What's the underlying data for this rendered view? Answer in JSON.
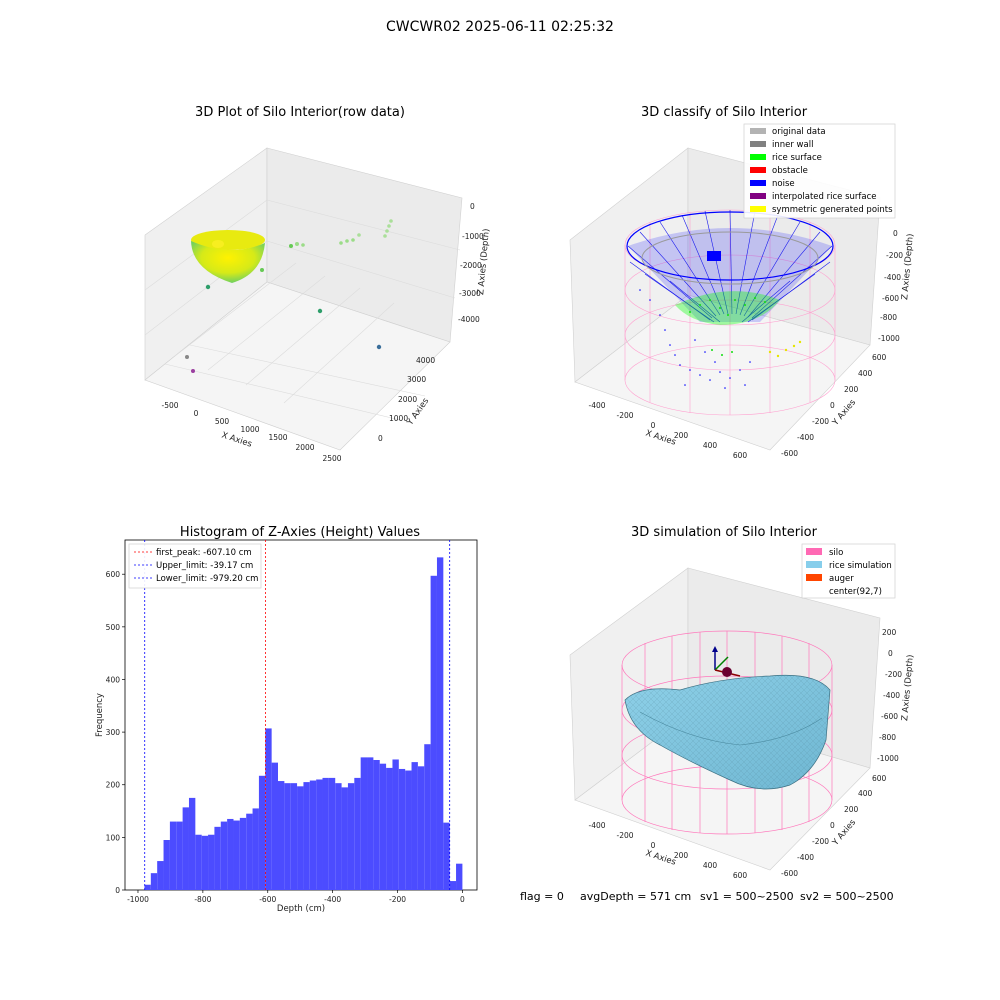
{
  "figure": {
    "suptitle": "CWCWR02 2025-06-11 02:25:32",
    "footer": {
      "flag": "flag = 0",
      "avg": "avgDepth = 571 cm",
      "sv1": "sv1 = 500~2500",
      "sv2": "sv2 = 500~2500"
    }
  },
  "colors": {
    "histogram_bar": "#4c4cff",
    "first_peak": "#ff0000",
    "limit": "#0000ff",
    "silo_wire": "#ff69b4",
    "rice_surface": "#87ceeb",
    "rice_green": "#00ff00",
    "noise": "#0000ff",
    "raw_yellow": "#e8e800",
    "raw_green": "#7fd85a"
  },
  "chart_data": [
    {
      "type": "scatter",
      "title": "3D Plot of Silo Interior(row data)",
      "xlabel": "X Axies",
      "ylabel": "Y Axies",
      "zlabel": "Z Axies (Depth)",
      "xticks": [
        "-500",
        "0",
        "500",
        "1000",
        "1500",
        "2000",
        "2500"
      ],
      "yticks": [
        "0",
        "1000",
        "2000",
        "3000",
        "4000"
      ],
      "zticks": [
        "0",
        "-1000",
        "-2000",
        "-3000",
        "-4000"
      ]
    },
    {
      "type": "scatter",
      "title": "3D classify of Silo Interior",
      "zlabel": "Z Axies (Depth)",
      "xlabel": "X Axies",
      "ylabel": "Y Axies",
      "xticks": [
        "-400",
        "-200",
        "0",
        "200",
        "400",
        "600"
      ],
      "yticks": [
        "600",
        "400",
        "200",
        "0",
        "-200",
        "-400",
        "-600"
      ],
      "zticks": [
        "0",
        "-200",
        "-400",
        "-600",
        "-800",
        "-1000"
      ],
      "legend": [
        {
          "label": "original data",
          "color": "#b3b3b3"
        },
        {
          "label": "inner wall",
          "color": "#808080"
        },
        {
          "label": "rice surface",
          "color": "#00ff00"
        },
        {
          "label": "obstacle",
          "color": "#ff0000"
        },
        {
          "label": "noise",
          "color": "#0000ff"
        },
        {
          "label": "interpolated rice surface",
          "color": "#800080"
        },
        {
          "label": "symmetric generated points",
          "color": "#ffff00"
        }
      ]
    },
    {
      "type": "bar",
      "title": "Histogram of Z-Axies (Height) Values",
      "xlabel": "Depth (cm)",
      "ylabel": "Frequency",
      "xlim": [
        -1040,
        45
      ],
      "ylim": [
        0,
        665
      ],
      "xticks": [
        -1000,
        -800,
        -600,
        -400,
        -200,
        0
      ],
      "yticks": [
        0,
        100,
        200,
        300,
        400,
        500,
        600
      ],
      "bin_width": 19.6,
      "bin_start": -980,
      "values": [
        10,
        32,
        55,
        95,
        130,
        130,
        157,
        175,
        105,
        103,
        105,
        120,
        130,
        135,
        132,
        137,
        145,
        155,
        217,
        307,
        242,
        207,
        203,
        203,
        197,
        205,
        208,
        210,
        213,
        213,
        203,
        195,
        203,
        213,
        252,
        252,
        247,
        240,
        232,
        248,
        230,
        227,
        243,
        235,
        277,
        597,
        632,
        128,
        17,
        50
      ],
      "vlines": [
        {
          "x": -607.1,
          "label": "first_peak: -607.10 cm",
          "color": "#ff0000"
        },
        {
          "x": -39.17,
          "label": "Upper_limit: -39.17 cm",
          "color": "#0000ff"
        },
        {
          "x": -979.2,
          "label": "Lower_limit: -979.20 cm",
          "color": "#0000ff"
        }
      ]
    },
    {
      "type": "area",
      "title": "3D simulation of Silo Interior",
      "zlabel": "Z Axies (Depth)",
      "xlabel": "X Axies",
      "ylabel": "Y Axies",
      "xticks": [
        "-400",
        "-200",
        "0",
        "200",
        "400",
        "600"
      ],
      "yticks": [
        "600",
        "400",
        "200",
        "0",
        "-200",
        "-400",
        "-600"
      ],
      "zticks": [
        "200",
        "0",
        "-200",
        "-400",
        "-600",
        "-800",
        "-1000"
      ],
      "legend": [
        {
          "label": "silo",
          "color": "#ff69b4"
        },
        {
          "label": "rice simulation",
          "color": "#87ceeb"
        },
        {
          "label": "auger",
          "color": "#ff4500"
        },
        {
          "label": "center(92,7)",
          "color": ""
        }
      ]
    }
  ]
}
